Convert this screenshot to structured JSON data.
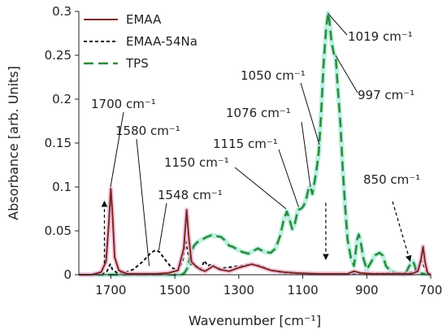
{
  "chart_data": {
    "type": "line",
    "xlabel": "Wavenumber [cm⁻¹]",
    "ylabel": "Absorbance [arb. Units]",
    "xlim": [
      1800,
      700
    ],
    "ylim": [
      0,
      0.3
    ],
    "x_reversed": true,
    "xticks": [
      1700,
      1500,
      1300,
      1100,
      900,
      700
    ],
    "yticks": [
      0,
      0.05,
      0.1,
      0.15,
      0.2,
      0.25,
      0.3
    ],
    "legend_position": "top-left",
    "series": [
      {
        "name": "EMAA",
        "color": "#7a2a22",
        "glow": "#f2b8d6",
        "dash": "solid",
        "points": [
          [
            1800,
            0.0
          ],
          [
            1760,
            0.0
          ],
          [
            1730,
            0.003
          ],
          [
            1715,
            0.015
          ],
          [
            1706,
            0.06
          ],
          [
            1700,
            0.098
          ],
          [
            1695,
            0.07
          ],
          [
            1688,
            0.02
          ],
          [
            1675,
            0.005
          ],
          [
            1650,
            0.001
          ],
          [
            1560,
            0.001
          ],
          [
            1520,
            0.002
          ],
          [
            1490,
            0.005
          ],
          [
            1472,
            0.03
          ],
          [
            1463,
            0.074
          ],
          [
            1457,
            0.045
          ],
          [
            1448,
            0.015
          ],
          [
            1435,
            0.01
          ],
          [
            1420,
            0.006
          ],
          [
            1405,
            0.004
          ],
          [
            1380,
            0.01
          ],
          [
            1360,
            0.006
          ],
          [
            1330,
            0.004
          ],
          [
            1300,
            0.008
          ],
          [
            1260,
            0.012
          ],
          [
            1240,
            0.01
          ],
          [
            1200,
            0.005
          ],
          [
            1160,
            0.003
          ],
          [
            1120,
            0.002
          ],
          [
            1050,
            0.001
          ],
          [
            1000,
            0.001
          ],
          [
            960,
            0.001
          ],
          [
            940,
            0.004
          ],
          [
            920,
            0.002
          ],
          [
            880,
            0.001
          ],
          [
            800,
            0.001
          ],
          [
            760,
            0.001
          ],
          [
            740,
            0.004
          ],
          [
            730,
            0.018
          ],
          [
            724,
            0.032
          ],
          [
            718,
            0.015
          ],
          [
            710,
            0.002
          ],
          [
            700,
            0.0
          ]
        ]
      },
      {
        "name": "EMAA-54Na",
        "color": "#111111",
        "glow": "none",
        "dash": "4,3",
        "points": [
          [
            1800,
            0.0
          ],
          [
            1730,
            0.0
          ],
          [
            1712,
            0.004
          ],
          [
            1702,
            0.012
          ],
          [
            1695,
            0.006
          ],
          [
            1680,
            0.002
          ],
          [
            1660,
            0.002
          ],
          [
            1630,
            0.006
          ],
          [
            1600,
            0.015
          ],
          [
            1575,
            0.025
          ],
          [
            1560,
            0.028
          ],
          [
            1548,
            0.026
          ],
          [
            1530,
            0.017
          ],
          [
            1510,
            0.008
          ],
          [
            1490,
            0.005
          ],
          [
            1475,
            0.015
          ],
          [
            1465,
            0.04
          ],
          [
            1459,
            0.025
          ],
          [
            1450,
            0.012
          ],
          [
            1430,
            0.008
          ],
          [
            1420,
            0.006
          ],
          [
            1407,
            0.016
          ],
          [
            1398,
            0.01
          ],
          [
            1385,
            0.012
          ],
          [
            1370,
            0.007
          ],
          [
            1340,
            0.008
          ],
          [
            1300,
            0.01
          ],
          [
            1260,
            0.012
          ],
          [
            1230,
            0.01
          ],
          [
            1200,
            0.005
          ],
          [
            1160,
            0.002
          ],
          [
            1100,
            0.001
          ],
          [
            1000,
            0.001
          ],
          [
            900,
            0.001
          ],
          [
            800,
            0.002
          ],
          [
            760,
            0.003
          ],
          [
            740,
            0.007
          ],
          [
            728,
            0.016
          ],
          [
            720,
            0.008
          ],
          [
            710,
            0.003
          ],
          [
            700,
            0.0
          ]
        ]
      },
      {
        "name": "TPS",
        "color": "#2e8b3c",
        "glow": "#a8ecd8",
        "dash": "12,6",
        "points": [
          [
            1800,
            0.0
          ],
          [
            1480,
            0.0
          ],
          [
            1470,
            0.002
          ],
          [
            1460,
            0.008
          ],
          [
            1450,
            0.025
          ],
          [
            1440,
            0.033
          ],
          [
            1430,
            0.037
          ],
          [
            1415,
            0.04
          ],
          [
            1400,
            0.043
          ],
          [
            1385,
            0.045
          ],
          [
            1370,
            0.044
          ],
          [
            1355,
            0.043
          ],
          [
            1340,
            0.038
          ],
          [
            1330,
            0.033
          ],
          [
            1320,
            0.032
          ],
          [
            1310,
            0.03
          ],
          [
            1290,
            0.026
          ],
          [
            1270,
            0.024
          ],
          [
            1250,
            0.028
          ],
          [
            1240,
            0.03
          ],
          [
            1220,
            0.026
          ],
          [
            1200,
            0.025
          ],
          [
            1185,
            0.03
          ],
          [
            1170,
            0.045
          ],
          [
            1160,
            0.062
          ],
          [
            1150,
            0.072
          ],
          [
            1143,
            0.065
          ],
          [
            1133,
            0.052
          ],
          [
            1125,
            0.058
          ],
          [
            1115,
            0.074
          ],
          [
            1106,
            0.075
          ],
          [
            1098,
            0.078
          ],
          [
            1090,
            0.085
          ],
          [
            1082,
            0.098
          ],
          [
            1076,
            0.1
          ],
          [
            1070,
            0.092
          ],
          [
            1062,
            0.108
          ],
          [
            1055,
            0.125
          ],
          [
            1050,
            0.14
          ],
          [
            1043,
            0.18
          ],
          [
            1035,
            0.24
          ],
          [
            1027,
            0.28
          ],
          [
            1021,
            0.298
          ],
          [
            1017,
            0.29
          ],
          [
            1010,
            0.265
          ],
          [
            1003,
            0.252
          ],
          [
            997,
            0.248
          ],
          [
            990,
            0.21
          ],
          [
            982,
            0.17
          ],
          [
            975,
            0.12
          ],
          [
            968,
            0.08
          ],
          [
            960,
            0.04
          ],
          [
            950,
            0.02
          ],
          [
            940,
            0.01
          ],
          [
            930,
            0.04
          ],
          [
            925,
            0.046
          ],
          [
            918,
            0.035
          ],
          [
            910,
            0.018
          ],
          [
            900,
            0.006
          ],
          [
            890,
            0.012
          ],
          [
            875,
            0.022
          ],
          [
            860,
            0.025
          ],
          [
            850,
            0.022
          ],
          [
            840,
            0.01
          ],
          [
            825,
            0.004
          ],
          [
            800,
            0.001
          ],
          [
            780,
            0.0
          ],
          [
            770,
            0.008
          ],
          [
            760,
            0.014
          ],
          [
            755,
            0.015
          ],
          [
            748,
            0.008
          ],
          [
            740,
            0.002
          ],
          [
            700,
            0.0
          ]
        ]
      }
    ],
    "annotations": [
      {
        "text": "1700 cm⁻¹",
        "tx": 1705,
        "ty": 0.2
      },
      {
        "text": "1580 cm⁻¹",
        "tx": 1580,
        "ty": 0.165
      },
      {
        "text": "1548 cm⁻¹",
        "tx": 1548,
        "ty": 0.085
      },
      {
        "text": "1150 cm⁻¹",
        "tx": 1150,
        "ty": 0.125
      },
      {
        "text": "1115 cm⁻¹",
        "tx": 1115,
        "ty": 0.15
      },
      {
        "text": "1076 cm⁻¹",
        "tx": 1076,
        "ty": 0.19
      },
      {
        "text": "1050 cm⁻¹",
        "tx": 1050,
        "ty": 0.225
      },
      {
        "text": "1019 cm⁻¹",
        "tx": 1019,
        "ty": 0.283
      },
      {
        "text": "997 cm⁻¹",
        "tx": 997,
        "ty": 0.21
      },
      {
        "text": "850 cm⁻¹",
        "tx": 850,
        "ty": 0.085
      }
    ]
  }
}
